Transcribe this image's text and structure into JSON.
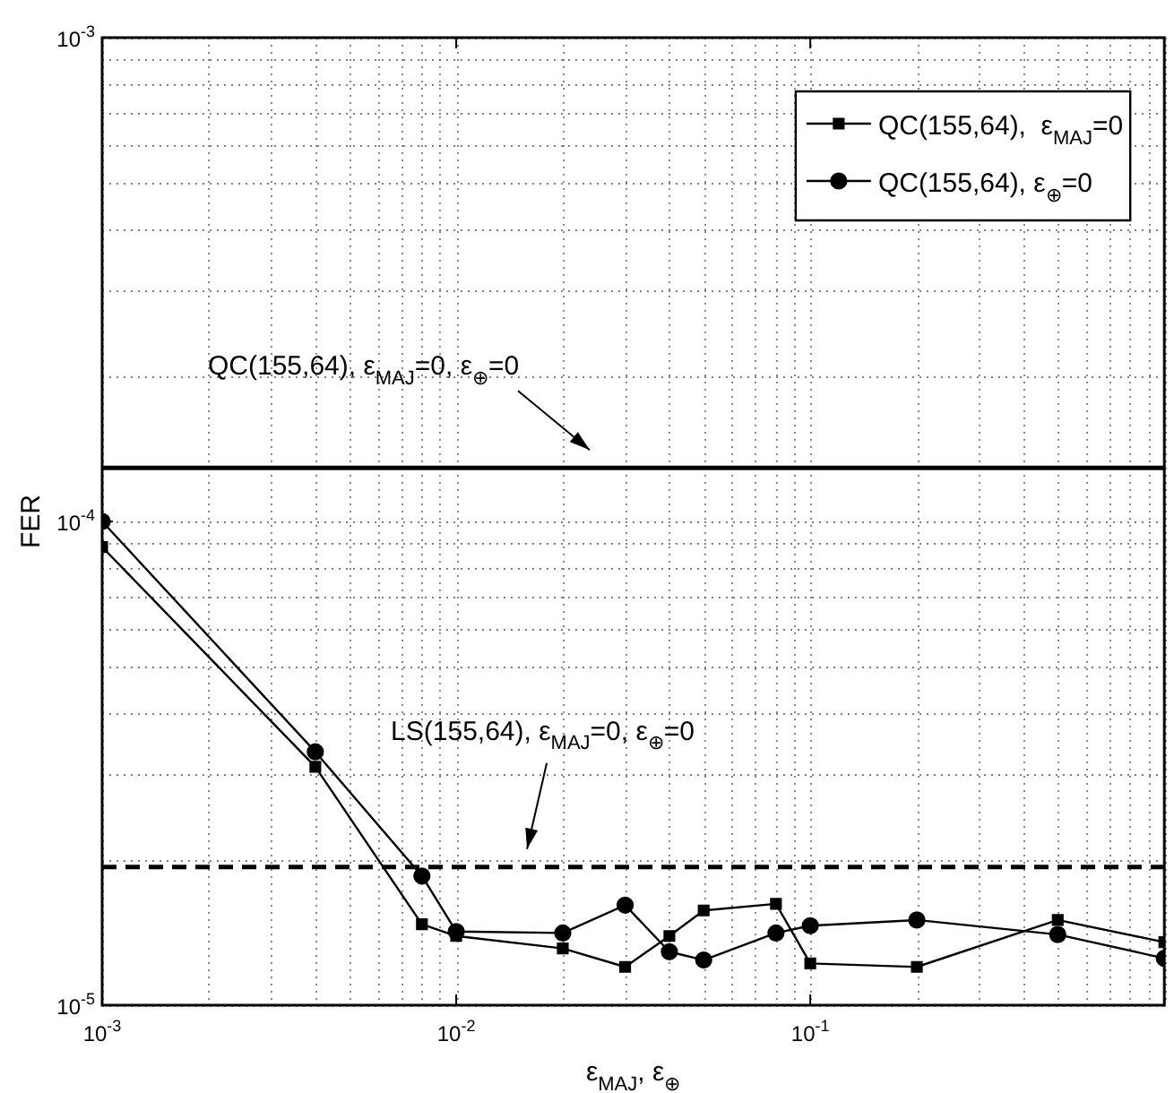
{
  "chart_data": {
    "type": "line",
    "xlabel": "ε$_{MAJ}$, ε$_{⊕}$",
    "ylabel": "FER",
    "log": "xy",
    "grid": true,
    "legend": "top right",
    "xlim": [
      0.001,
      1
    ],
    "xticks": [
      {
        "value": 0.001,
        "label": "10$^{-3}$"
      },
      {
        "value": 0.01,
        "label": "10$^{-2}$"
      },
      {
        "value": 0.1,
        "label": "10$^{-1}$"
      }
    ],
    "ylim": [
      1e-05,
      0.001
    ],
    "yticks": [
      {
        "value": 1e-05,
        "label": "10$^{-5}$"
      },
      {
        "value": 0.0001,
        "label": "10$^{-4}$"
      },
      {
        "value": 0.001,
        "label": "10$^{-3}$"
      }
    ],
    "x": [
      0.001,
      0.004,
      0.008,
      0.01,
      0.02,
      0.03,
      0.04,
      0.05,
      0.08,
      0.1,
      0.2,
      0.5,
      1
    ],
    "series": [
      {
        "name": "QC(155,64),  ε$_{MAJ}$=0",
        "color": "#000000",
        "marker": "square",
        "values": [
          8.85e-05,
          3.11e-05,
          1.47e-05,
          1.39e-05,
          1.31e-05,
          1.2e-05,
          1.39e-05,
          1.57e-05,
          1.62e-05,
          1.22e-05,
          1.2e-05,
          1.5e-05,
          1.35e-05
        ]
      },
      {
        "name": "QC(155,64), ε$_{⊕}$=0",
        "color": "#000000",
        "marker": "circle",
        "values": [
          0.0001,
          3.34e-05,
          1.85e-05,
          1.42e-05,
          1.41e-05,
          1.61e-05,
          1.29e-05,
          1.24e-05,
          1.41e-05,
          1.46e-05,
          1.5e-05,
          1.4e-05,
          1.25e-05
        ]
      }
    ],
    "ref_lines": [
      {
        "axis": "y",
        "value": 0.000129,
        "color": "#000000",
        "line_style": "solid"
      },
      {
        "axis": "y",
        "value": 1.93e-05,
        "color": "#000000",
        "line_style": "dashed"
      }
    ],
    "annotations": [
      "QC(155,64), ε$_{MAJ}$=0, ε$_{⊕}$=0",
      "LS(155,64), ε$_{MAJ}$=0, ε$_{⊕}$=0"
    ]
  }
}
